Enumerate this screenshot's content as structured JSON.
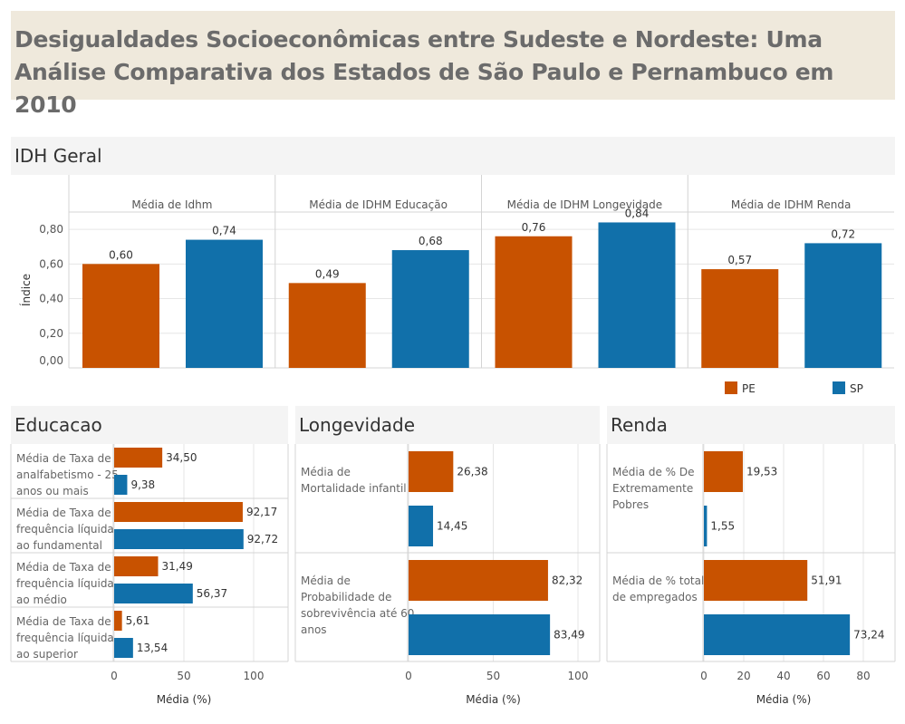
{
  "title": "Desigualdades Socioeconômicas entre Sudeste e Nordeste: Uma Análise Comparativa dos Estados de São Paulo e Pernambuco em 2010",
  "colors": {
    "PE": "#c85200",
    "SP": "#1170aa",
    "grid": "#e6e6e6",
    "header_bg": "#f4f4f4",
    "title_bg": "#efe9dc"
  },
  "legend": [
    {
      "key": "PE",
      "label": "PE"
    },
    {
      "key": "SP",
      "label": "SP"
    }
  ],
  "idh": {
    "title": "IDH Geral",
    "y_title": "Índice",
    "y_ticks": [
      "0,80",
      "0,60",
      "0,40",
      "0,20",
      "0,00"
    ]
  },
  "educacao": {
    "title": "Educacao",
    "x_title": "Média (%)",
    "x_ticks": [
      "0",
      "50",
      "100"
    ]
  },
  "longevidade": {
    "title": "Longevidade",
    "x_title": "Média (%)",
    "x_ticks": [
      "0",
      "50",
      "100"
    ]
  },
  "renda": {
    "title": "Renda",
    "x_title": "Média (%)",
    "x_ticks": [
      "0",
      "20",
      "40",
      "60",
      "80"
    ]
  },
  "chart_data": [
    {
      "type": "bar",
      "title": "IDH Geral",
      "ylabel": "Índice",
      "ylim": [
        0,
        0.9
      ],
      "series_keys": [
        "PE",
        "SP"
      ],
      "groups": [
        {
          "name": "Média de Idhm",
          "PE": 0.6,
          "SP": 0.74,
          "PE_label": "0,60",
          "SP_label": "0,74"
        },
        {
          "name": "Média de IDHM Educação",
          "PE": 0.49,
          "SP": 0.68,
          "PE_label": "0,49",
          "SP_label": "0,68"
        },
        {
          "name": "Média de IDHM Longevidade",
          "PE": 0.76,
          "SP": 0.84,
          "PE_label": "0,76",
          "SP_label": "0,84"
        },
        {
          "name": "Média de IDHM Renda",
          "PE": 0.57,
          "SP": 0.72,
          "PE_label": "0,57",
          "SP_label": "0,72"
        }
      ]
    },
    {
      "type": "bar",
      "orientation": "horizontal",
      "title": "Educacao",
      "xlabel": "Média (%)",
      "xlim": [
        0,
        125
      ],
      "categories": [
        {
          "label": [
            "Média de Taxa de",
            "analfabetismo - 25",
            "anos ou mais"
          ],
          "PE": 34.5,
          "SP": 9.38,
          "PE_label": "34,50",
          "SP_label": "9,38"
        },
        {
          "label": [
            "Média de Taxa de",
            "frequência líquida",
            "ao fundamental"
          ],
          "PE": 92.17,
          "SP": 92.72,
          "PE_label": "92,17",
          "SP_label": "92,72"
        },
        {
          "label": [
            "Média de Taxa de",
            "frequência líquida",
            "ao médio"
          ],
          "PE": 31.49,
          "SP": 56.37,
          "PE_label": "31,49",
          "SP_label": "56,37"
        },
        {
          "label": [
            "Média de Taxa de",
            "frequência líquida",
            "ao superior"
          ],
          "PE": 5.61,
          "SP": 13.54,
          "PE_label": "5,61",
          "SP_label": "13,54"
        }
      ]
    },
    {
      "type": "bar",
      "orientation": "horizontal",
      "title": "Longevidade",
      "xlabel": "Média (%)",
      "xlim": [
        0,
        105
      ],
      "categories": [
        {
          "label": [
            "Média de",
            "Mortalidade infantil"
          ],
          "PE": 26.38,
          "SP": 14.45,
          "PE_label": "26,38",
          "SP_label": "14,45"
        },
        {
          "label": [
            "Média de",
            "Probabilidade de",
            "sobrevivência até 60",
            "anos"
          ],
          "PE": 82.32,
          "SP": 83.49,
          "PE_label": "82,32",
          "SP_label": "83,49"
        }
      ]
    },
    {
      "type": "bar",
      "orientation": "horizontal",
      "title": "Renda",
      "xlabel": "Média (%)",
      "xlim": [
        0,
        90
      ],
      "categories": [
        {
          "label": [
            "Média de % De",
            "Extremamente",
            "Pobres"
          ],
          "PE": 19.53,
          "SP": 1.55,
          "PE_label": "19,53",
          "SP_label": "1,55"
        },
        {
          "label": [
            "Média de % total",
            "de empregados"
          ],
          "PE": 51.91,
          "SP": 73.24,
          "PE_label": "51,91",
          "SP_label": "73,24"
        }
      ]
    }
  ]
}
